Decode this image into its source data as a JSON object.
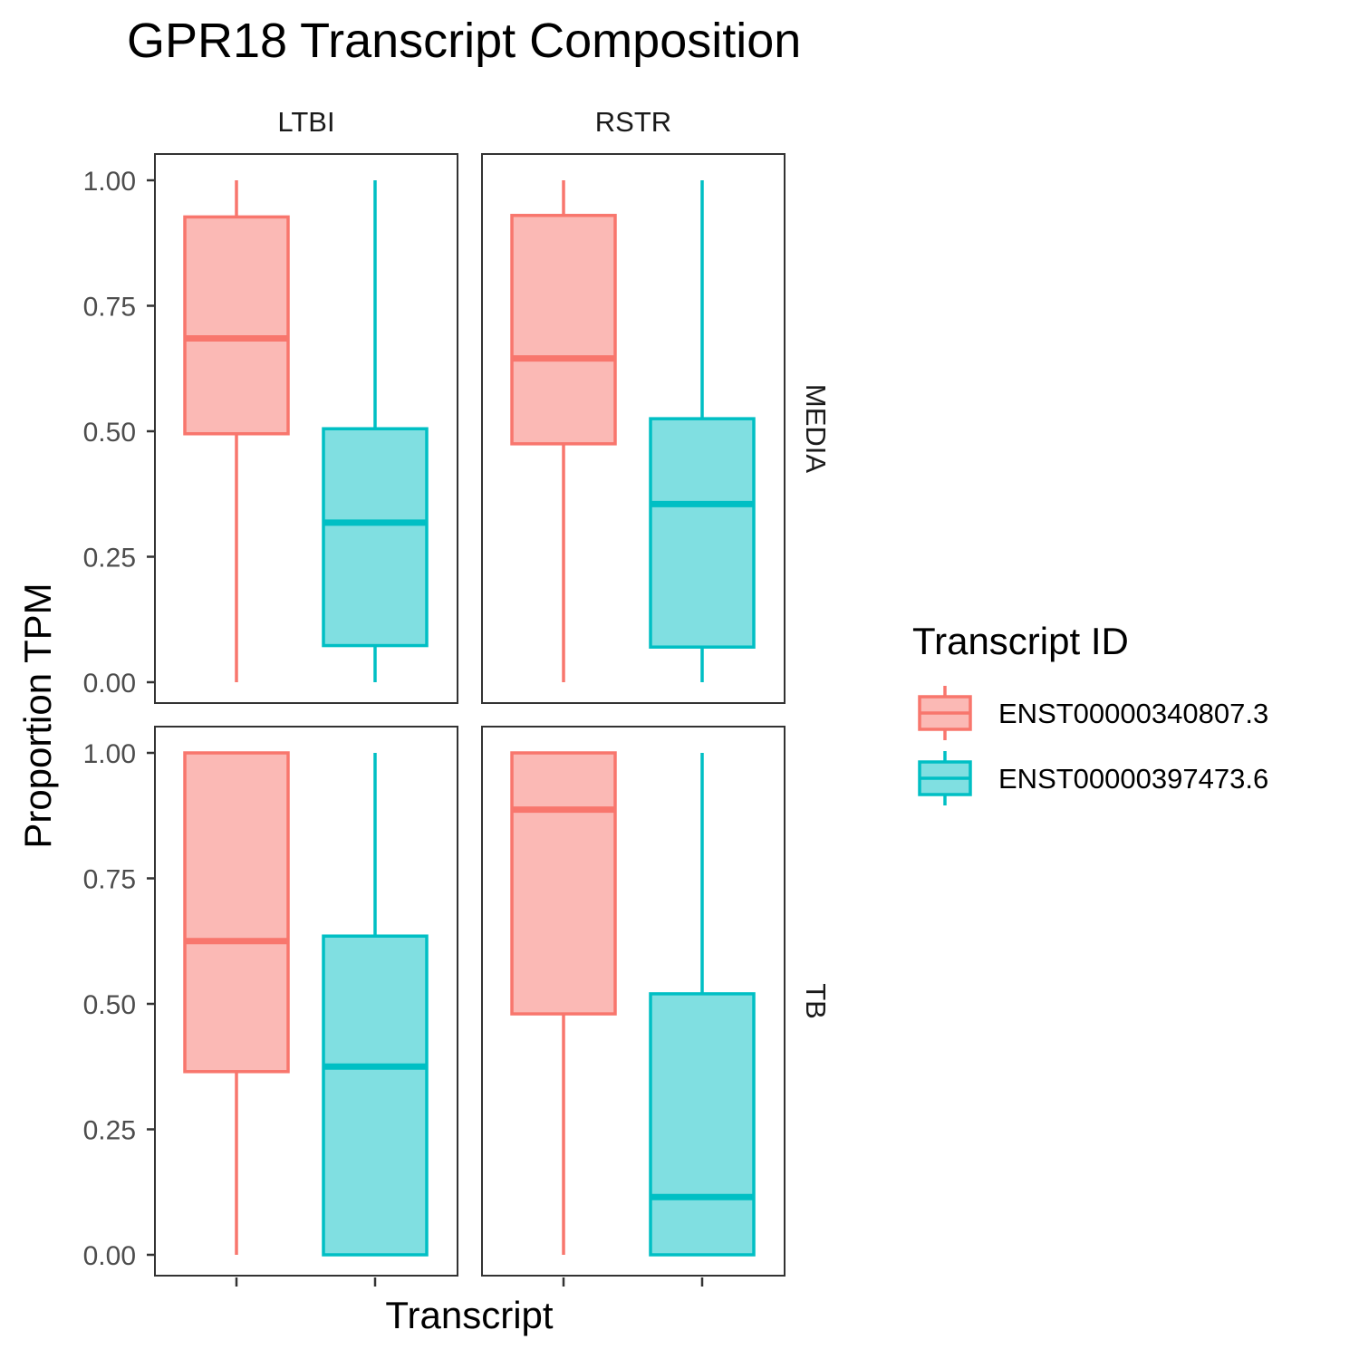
{
  "chart_data": {
    "type": "boxplot",
    "title": "GPR18 Transcript Composition",
    "xlabel": "Transcript",
    "ylabel": "Proportion TPM",
    "ylim": [
      0,
      1
    ],
    "y_ticks": [
      "0.00",
      "0.25",
      "0.50",
      "0.75",
      "1.00"
    ],
    "y_tick_values": [
      0,
      0.25,
      0.5,
      0.75,
      1.0
    ],
    "facet_columns": [
      "LTBI",
      "RSTR"
    ],
    "facet_rows": [
      "MEDIA",
      "TB"
    ],
    "grid": false,
    "legend": {
      "title": "Transcript ID",
      "position": "right",
      "entries": [
        {
          "label": "ENST00000340807.3",
          "color": "#F8766D",
          "fill": "#FBB9B5"
        },
        {
          "label": "ENST00000397473.6",
          "color": "#00BFC4",
          "fill": "#80DFE1"
        }
      ]
    },
    "panels": [
      {
        "row": "MEDIA",
        "col": "LTBI",
        "boxes": [
          {
            "transcript": "ENST00000340807.3",
            "min": 0.0,
            "q1": 0.495,
            "median": 0.685,
            "q3": 0.927,
            "max": 1.0
          },
          {
            "transcript": "ENST00000397473.6",
            "min": 0.0,
            "q1": 0.073,
            "median": 0.318,
            "q3": 0.505,
            "max": 1.0
          }
        ]
      },
      {
        "row": "MEDIA",
        "col": "RSTR",
        "boxes": [
          {
            "transcript": "ENST00000340807.3",
            "min": 0.0,
            "q1": 0.475,
            "median": 0.645,
            "q3": 0.93,
            "max": 1.0
          },
          {
            "transcript": "ENST00000397473.6",
            "min": 0.0,
            "q1": 0.07,
            "median": 0.355,
            "q3": 0.525,
            "max": 1.0
          }
        ]
      },
      {
        "row": "TB",
        "col": "LTBI",
        "boxes": [
          {
            "transcript": "ENST00000340807.3",
            "min": 0.0,
            "q1": 0.365,
            "median": 0.625,
            "q3": 1.0,
            "max": 1.0
          },
          {
            "transcript": "ENST00000397473.6",
            "min": 0.0,
            "q1": 0.0,
            "median": 0.375,
            "q3": 0.635,
            "max": 1.0
          }
        ]
      },
      {
        "row": "TB",
        "col": "RSTR",
        "boxes": [
          {
            "transcript": "ENST00000340807.3",
            "min": 0.0,
            "q1": 0.48,
            "median": 0.887,
            "q3": 1.0,
            "max": 1.0
          },
          {
            "transcript": "ENST00000397473.6",
            "min": 0.0,
            "q1": 0.0,
            "median": 0.115,
            "q3": 0.52,
            "max": 1.0
          }
        ]
      }
    ]
  }
}
